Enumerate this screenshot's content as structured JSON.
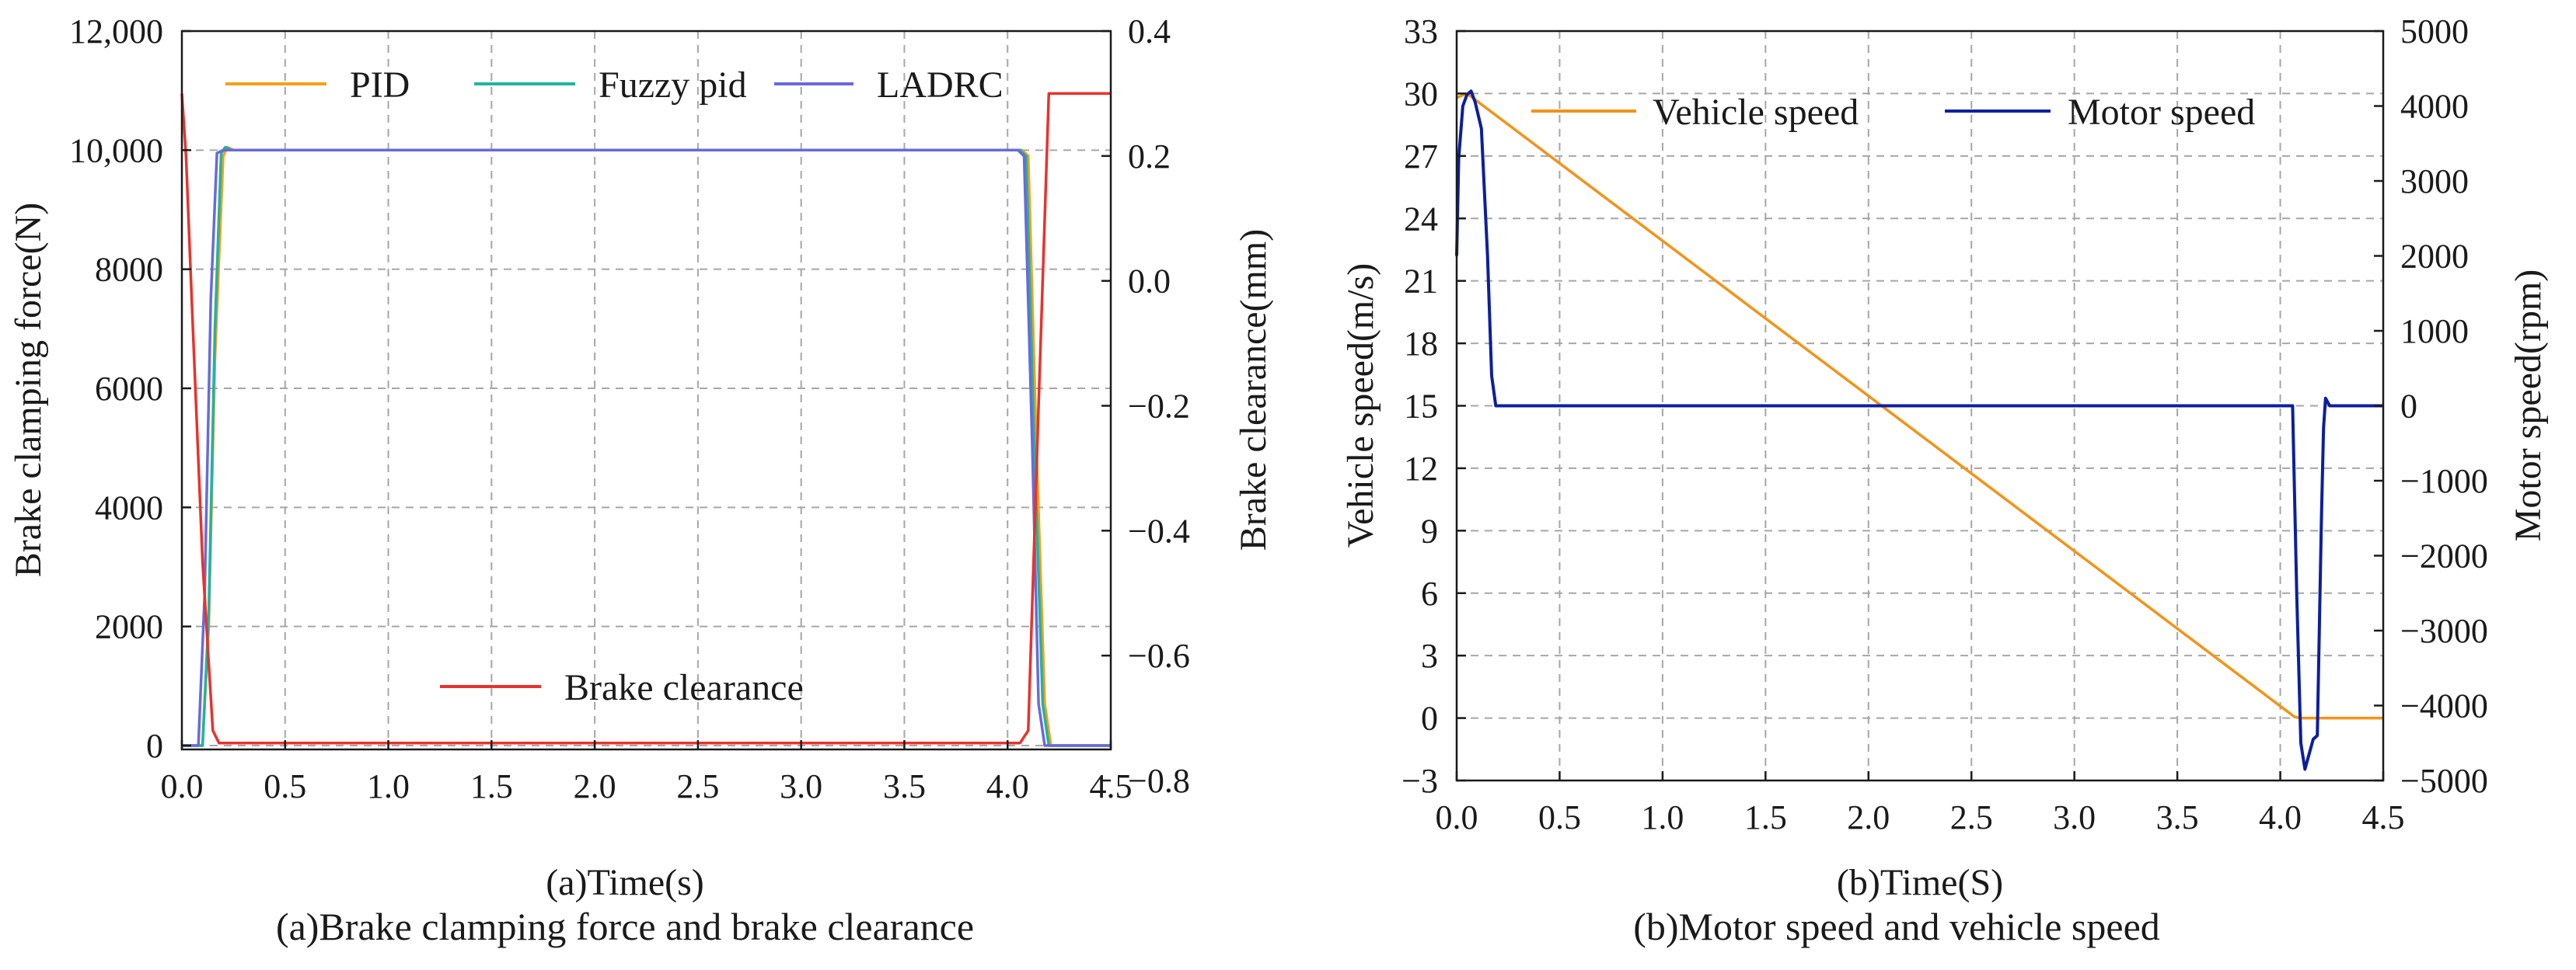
{
  "colors": {
    "pid": "#f5a01a",
    "fuzzy": "#21b3a3",
    "ladrc": "#6a6ad8",
    "clearance": "#e8322c",
    "vehicle": "#f39318",
    "motor": "#0b1f9e"
  },
  "chart_data": [
    {
      "type": "line",
      "caption": "(a)Brake clamping force and brake clearance",
      "xlabel": "(a)Time(s)",
      "ylabel": "Brake clamping force(N)",
      "y2label": "Brake clearance(mm)",
      "xlim": [
        0,
        4.5
      ],
      "ylim": [
        -200,
        12000
      ],
      "y2lim": [
        -0.8,
        0.4
      ],
      "xticks": [
        "0.0",
        "0.5",
        "1.0",
        "1.5",
        "2.0",
        "2.5",
        "3.0",
        "3.5",
        "4.0",
        "4.5"
      ],
      "yticks": [
        "0",
        "2000",
        "4000",
        "6000",
        "8000",
        "10,000",
        "12,000"
      ],
      "y2ticks": [
        "−0.8",
        "−0.6",
        "−0.4",
        "−0.2",
        "0.0",
        "0.2",
        "0.4"
      ],
      "grid": true,
      "legend_items": [
        "PID",
        "Fuzzy pid",
        "LADRC"
      ],
      "legend2_items": [
        "Brake clearance"
      ],
      "series": [
        {
          "name": "PID",
          "axis": "left",
          "color_key": "pid",
          "x": [
            0,
            0.1,
            0.13,
            0.16,
            0.2,
            0.22,
            0.25,
            4.07,
            4.1,
            4.14,
            4.18,
            4.21,
            4.5
          ],
          "y": [
            0,
            0,
            2000,
            6500,
            9900,
            10050,
            10000,
            10000,
            9900,
            5000,
            700,
            0,
            0
          ]
        },
        {
          "name": "Fuzzy pid",
          "axis": "left",
          "color_key": "fuzzy",
          "x": [
            0,
            0.1,
            0.13,
            0.16,
            0.19,
            0.21,
            0.24,
            4.06,
            4.09,
            4.13,
            4.17,
            4.2,
            4.5
          ],
          "y": [
            0,
            0,
            2200,
            7000,
            9950,
            10050,
            10000,
            10000,
            9900,
            5000,
            700,
            0,
            0
          ]
        },
        {
          "name": "LADRC",
          "axis": "left",
          "color_key": "ladrc",
          "x": [
            0,
            0.08,
            0.11,
            0.14,
            0.17,
            0.2,
            4.05,
            4.08,
            4.12,
            4.15,
            4.18,
            4.5
          ],
          "y": [
            0,
            0,
            2500,
            7500,
            9950,
            10000,
            10000,
            9900,
            5000,
            700,
            0,
            0
          ]
        },
        {
          "name": "Brake clearance",
          "axis": "right",
          "color_key": "clearance",
          "x": [
            0,
            0.02,
            0.05,
            0.1,
            0.15,
            0.18,
            4.06,
            4.1,
            4.15,
            4.2,
            4.24,
            4.5
          ],
          "y": [
            0.3,
            0.2,
            -0.05,
            -0.45,
            -0.72,
            -0.74,
            -0.74,
            -0.72,
            -0.2,
            0.3,
            0.3,
            0.3
          ]
        }
      ]
    },
    {
      "type": "line",
      "caption": "(b)Motor speed and vehicle speed",
      "xlabel": "(b)Time(S)",
      "ylabel": "Vehicle speed(m/s)",
      "y2label": "Motor speed(rpm)",
      "xlim": [
        0,
        4.5
      ],
      "ylim": [
        -3,
        33
      ],
      "y2lim": [
        -5000,
        5000
      ],
      "xticks": [
        "0.0",
        "0.5",
        "1.0",
        "1.5",
        "2.0",
        "2.5",
        "3.0",
        "3.5",
        "4.0",
        "4.5"
      ],
      "yticks": [
        "−3",
        "0",
        "3",
        "6",
        "9",
        "12",
        "15",
        "18",
        "21",
        "24",
        "27",
        "30",
        "33"
      ],
      "y2ticks": [
        "−5000",
        "−4000",
        "−3000",
        "−2000",
        "−1000",
        "0",
        "1000",
        "2000",
        "3000",
        "4000",
        "5000"
      ],
      "grid": true,
      "legend_items": [
        "Vehicle speed",
        "Motor speed"
      ],
      "series": [
        {
          "name": "Vehicle speed",
          "axis": "left",
          "color_key": "vehicle",
          "x": [
            0,
            0.05,
            4.07,
            4.1,
            4.5
          ],
          "y": [
            29.8,
            30.0,
            0.05,
            0,
            0
          ]
        },
        {
          "name": "Motor speed",
          "axis": "right",
          "color_key": "motor",
          "x": [
            0,
            0.01,
            0.03,
            0.05,
            0.07,
            0.09,
            0.12,
            0.15,
            0.17,
            0.19,
            4.06,
            4.08,
            4.1,
            4.12,
            4.14,
            4.16,
            4.18,
            4.2,
            4.21,
            4.22,
            4.23,
            4.24,
            4.26,
            4.5
          ],
          "y": [
            2000,
            3300,
            4000,
            4150,
            4200,
            4050,
            3700,
            2000,
            400,
            0,
            0,
            -2500,
            -4500,
            -4850,
            -4650,
            -4450,
            -4400,
            -1500,
            -300,
            100,
            50,
            0,
            0,
            0
          ]
        }
      ]
    }
  ]
}
